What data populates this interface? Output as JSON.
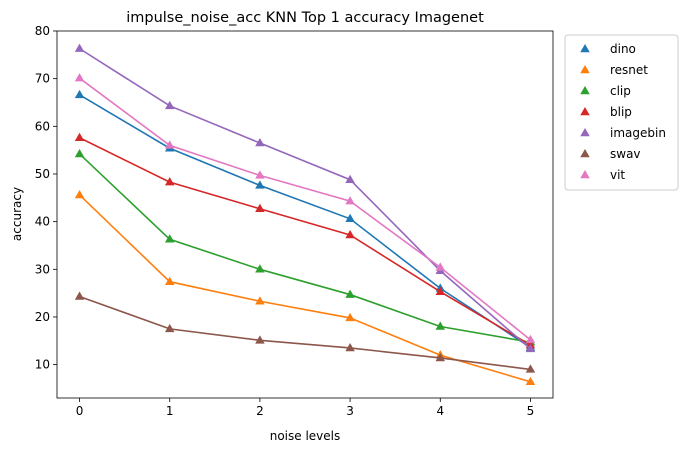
{
  "chart_data": {
    "type": "line",
    "title": "impulse_noise_acc KNN Top 1 accuracy Imagenet",
    "xlabel": "noise levels",
    "ylabel": "accuracy",
    "x": [
      0,
      1,
      2,
      3,
      4,
      5
    ],
    "xlim": [
      -0.25,
      5.25
    ],
    "ylim": [
      3.0,
      80.0
    ],
    "xticks": [
      0,
      1,
      2,
      3,
      4,
      5
    ],
    "yticks": [
      10,
      20,
      30,
      40,
      50,
      60,
      70,
      80
    ],
    "grid": false,
    "legend_position": "outside-right",
    "marker": "triangle",
    "series": [
      {
        "name": "dino",
        "color": "#1f77b4",
        "values": [
          66.6,
          55.4,
          47.6,
          40.6,
          26.0,
          13.6
        ]
      },
      {
        "name": "resnet",
        "color": "#ff7f0e",
        "values": [
          45.6,
          27.4,
          23.3,
          19.8,
          12.0,
          6.4
        ]
      },
      {
        "name": "clip",
        "color": "#2ca02c",
        "values": [
          54.2,
          36.3,
          30.0,
          24.7,
          18.0,
          14.7
        ]
      },
      {
        "name": "blip",
        "color": "#d62728",
        "values": [
          57.6,
          48.3,
          42.7,
          37.2,
          25.3,
          14.1
        ]
      },
      {
        "name": "imagebin",
        "color": "#9467bd",
        "values": [
          76.3,
          64.3,
          56.5,
          48.8,
          29.7,
          13.3
        ]
      },
      {
        "name": "swav",
        "color": "#8c564b",
        "values": [
          24.3,
          17.5,
          15.1,
          13.5,
          11.4,
          9.0
        ]
      },
      {
        "name": "vit",
        "color": "#e377c2",
        "values": [
          70.1,
          56.0,
          49.7,
          44.3,
          30.4,
          15.2
        ]
      }
    ]
  }
}
